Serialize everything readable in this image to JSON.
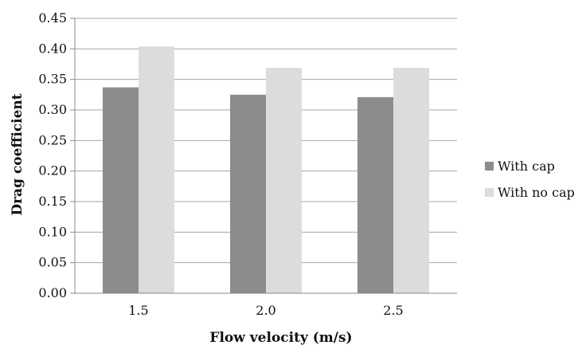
{
  "chart_data": {
    "type": "bar",
    "title": "",
    "xlabel": "Flow velocity (m/s)",
    "ylabel": "Drag coefficient",
    "categories": [
      "1.5",
      "2.0",
      "2.5"
    ],
    "series": [
      {
        "name": "With cap",
        "values": [
          0.337,
          0.325,
          0.321
        ],
        "color": "#8c8c8c"
      },
      {
        "name": "With no cap",
        "values": [
          0.404,
          0.369,
          0.369
        ],
        "color": "#dcdcdc"
      }
    ],
    "ylim": [
      0,
      0.45
    ],
    "yticks": [
      "0.00",
      "0.05",
      "0.10",
      "0.15",
      "0.20",
      "0.25",
      "0.30",
      "0.35",
      "0.40",
      "0.45"
    ],
    "grid": true,
    "legend_position": "right"
  }
}
